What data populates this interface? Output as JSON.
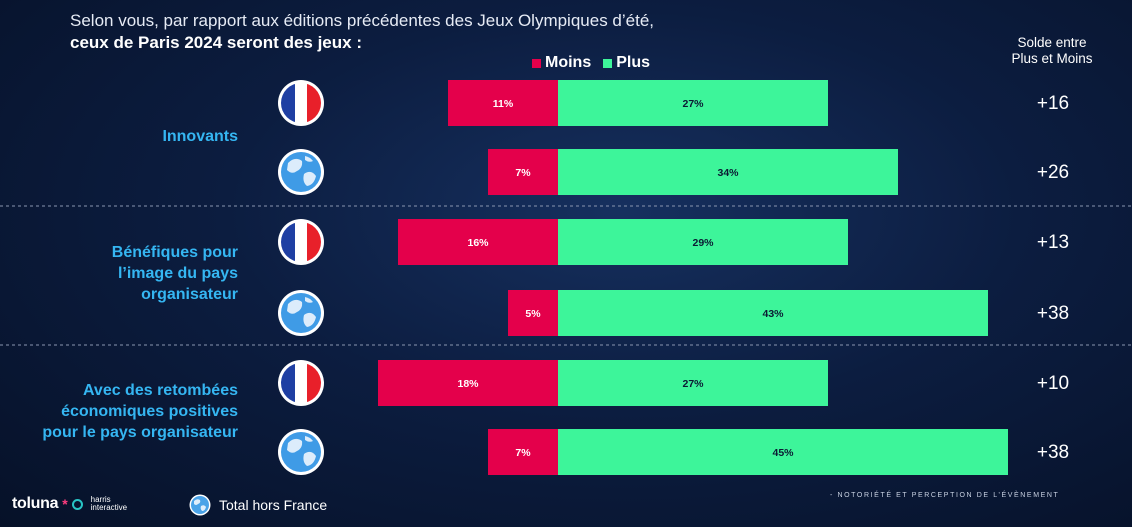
{
  "header": {
    "title_line1": "Selon vous, par rapport aux éditions précédentes des Jeux Olympiques d’été,",
    "title_line2": "ceux de Paris 2024 seront des jeux :"
  },
  "legend": {
    "moins": "Moins",
    "plus": "Plus"
  },
  "solde_header": {
    "line1": "Solde entre",
    "line2": "Plus et Moins"
  },
  "colors": {
    "moins": "#e4004b",
    "plus": "#3df59a",
    "label": "#35b6f2",
    "separator": "#8a96b0"
  },
  "chart_data": {
    "type": "bar",
    "orientation": "horizontal-diverging",
    "groups": [
      {
        "label_lines": [
          "Innovants"
        ],
        "rows": [
          {
            "population": "France",
            "icon": "france-flag-icon",
            "moins": 11,
            "plus": 27,
            "solde": "+16"
          },
          {
            "population": "Total hors France",
            "icon": "globe-icon",
            "moins": 7,
            "plus": 34,
            "solde": "+26"
          }
        ]
      },
      {
        "label_lines": [
          "Bénéfiques pour",
          "l’image du pays",
          "organisateur"
        ],
        "rows": [
          {
            "population": "France",
            "icon": "france-flag-icon",
            "moins": 16,
            "plus": 29,
            "solde": "+13"
          },
          {
            "population": "Total hors France",
            "icon": "globe-icon",
            "moins": 5,
            "plus": 43,
            "solde": "+38"
          }
        ]
      },
      {
        "label_lines": [
          "Avec des retombées",
          "économiques positives",
          "pour le pays organisateur"
        ],
        "rows": [
          {
            "population": "France",
            "icon": "france-flag-icon",
            "moins": 18,
            "plus": 27,
            "solde": "+10"
          },
          {
            "population": "Total hors France",
            "icon": "globe-icon",
            "moins": 7,
            "plus": 45,
            "solde": "+38"
          }
        ]
      }
    ],
    "value_suffix": "%"
  },
  "footer": {
    "brand": "toluna",
    "brand_mark": "*",
    "partner_line1": "harris",
    "partner_line2": "interactive",
    "globe_legend": "Total hors France",
    "section": "- NOTORIÉTÉ ET PERCEPTION DE L’ÉVÈNEMENT"
  }
}
